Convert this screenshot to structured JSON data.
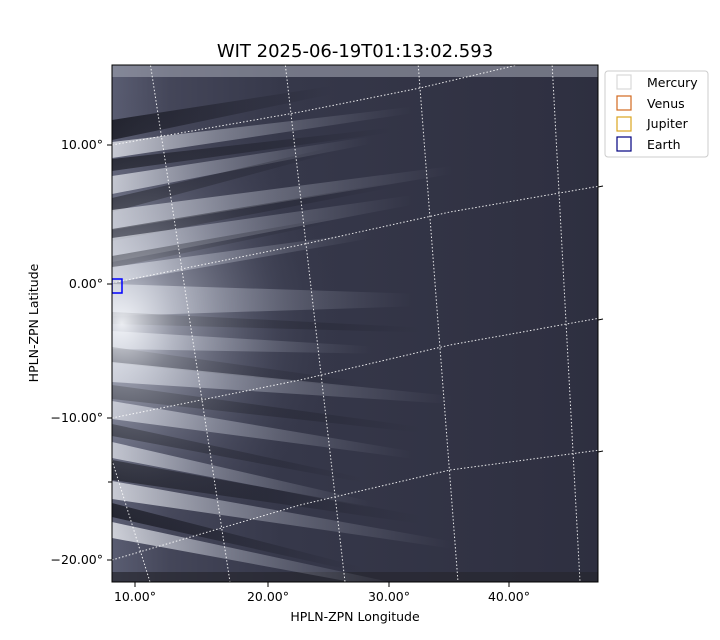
{
  "chart_data": {
    "type": "heatmap",
    "title": "WIT 2025-06-19T01:13:02.593",
    "xlabel": "HPLN-ZPN Longitude",
    "ylabel": "HPLN-ZPN Latitude",
    "x_ticks": [
      "10.00°",
      "20.00°",
      "30.00°",
      "40.00°"
    ],
    "y_ticks": [
      "10.00°",
      "0.00°",
      "−10.00°",
      "−20.00°"
    ],
    "colormap": "bone",
    "grid": "dotted white coordinate grid",
    "legend": {
      "placement": "top-right outside",
      "entries": [
        {
          "name": "Mercury",
          "color": "#d8d8d8"
        },
        {
          "name": "Venus",
          "color": "#d2691e"
        },
        {
          "name": "Jupiter",
          "color": "#daa520"
        },
        {
          "name": "Earth",
          "color": "#000080"
        }
      ]
    },
    "markers": [
      {
        "name": "Earth",
        "lon": 8.4,
        "lat": 0.0,
        "color": "#0000ff"
      }
    ]
  }
}
